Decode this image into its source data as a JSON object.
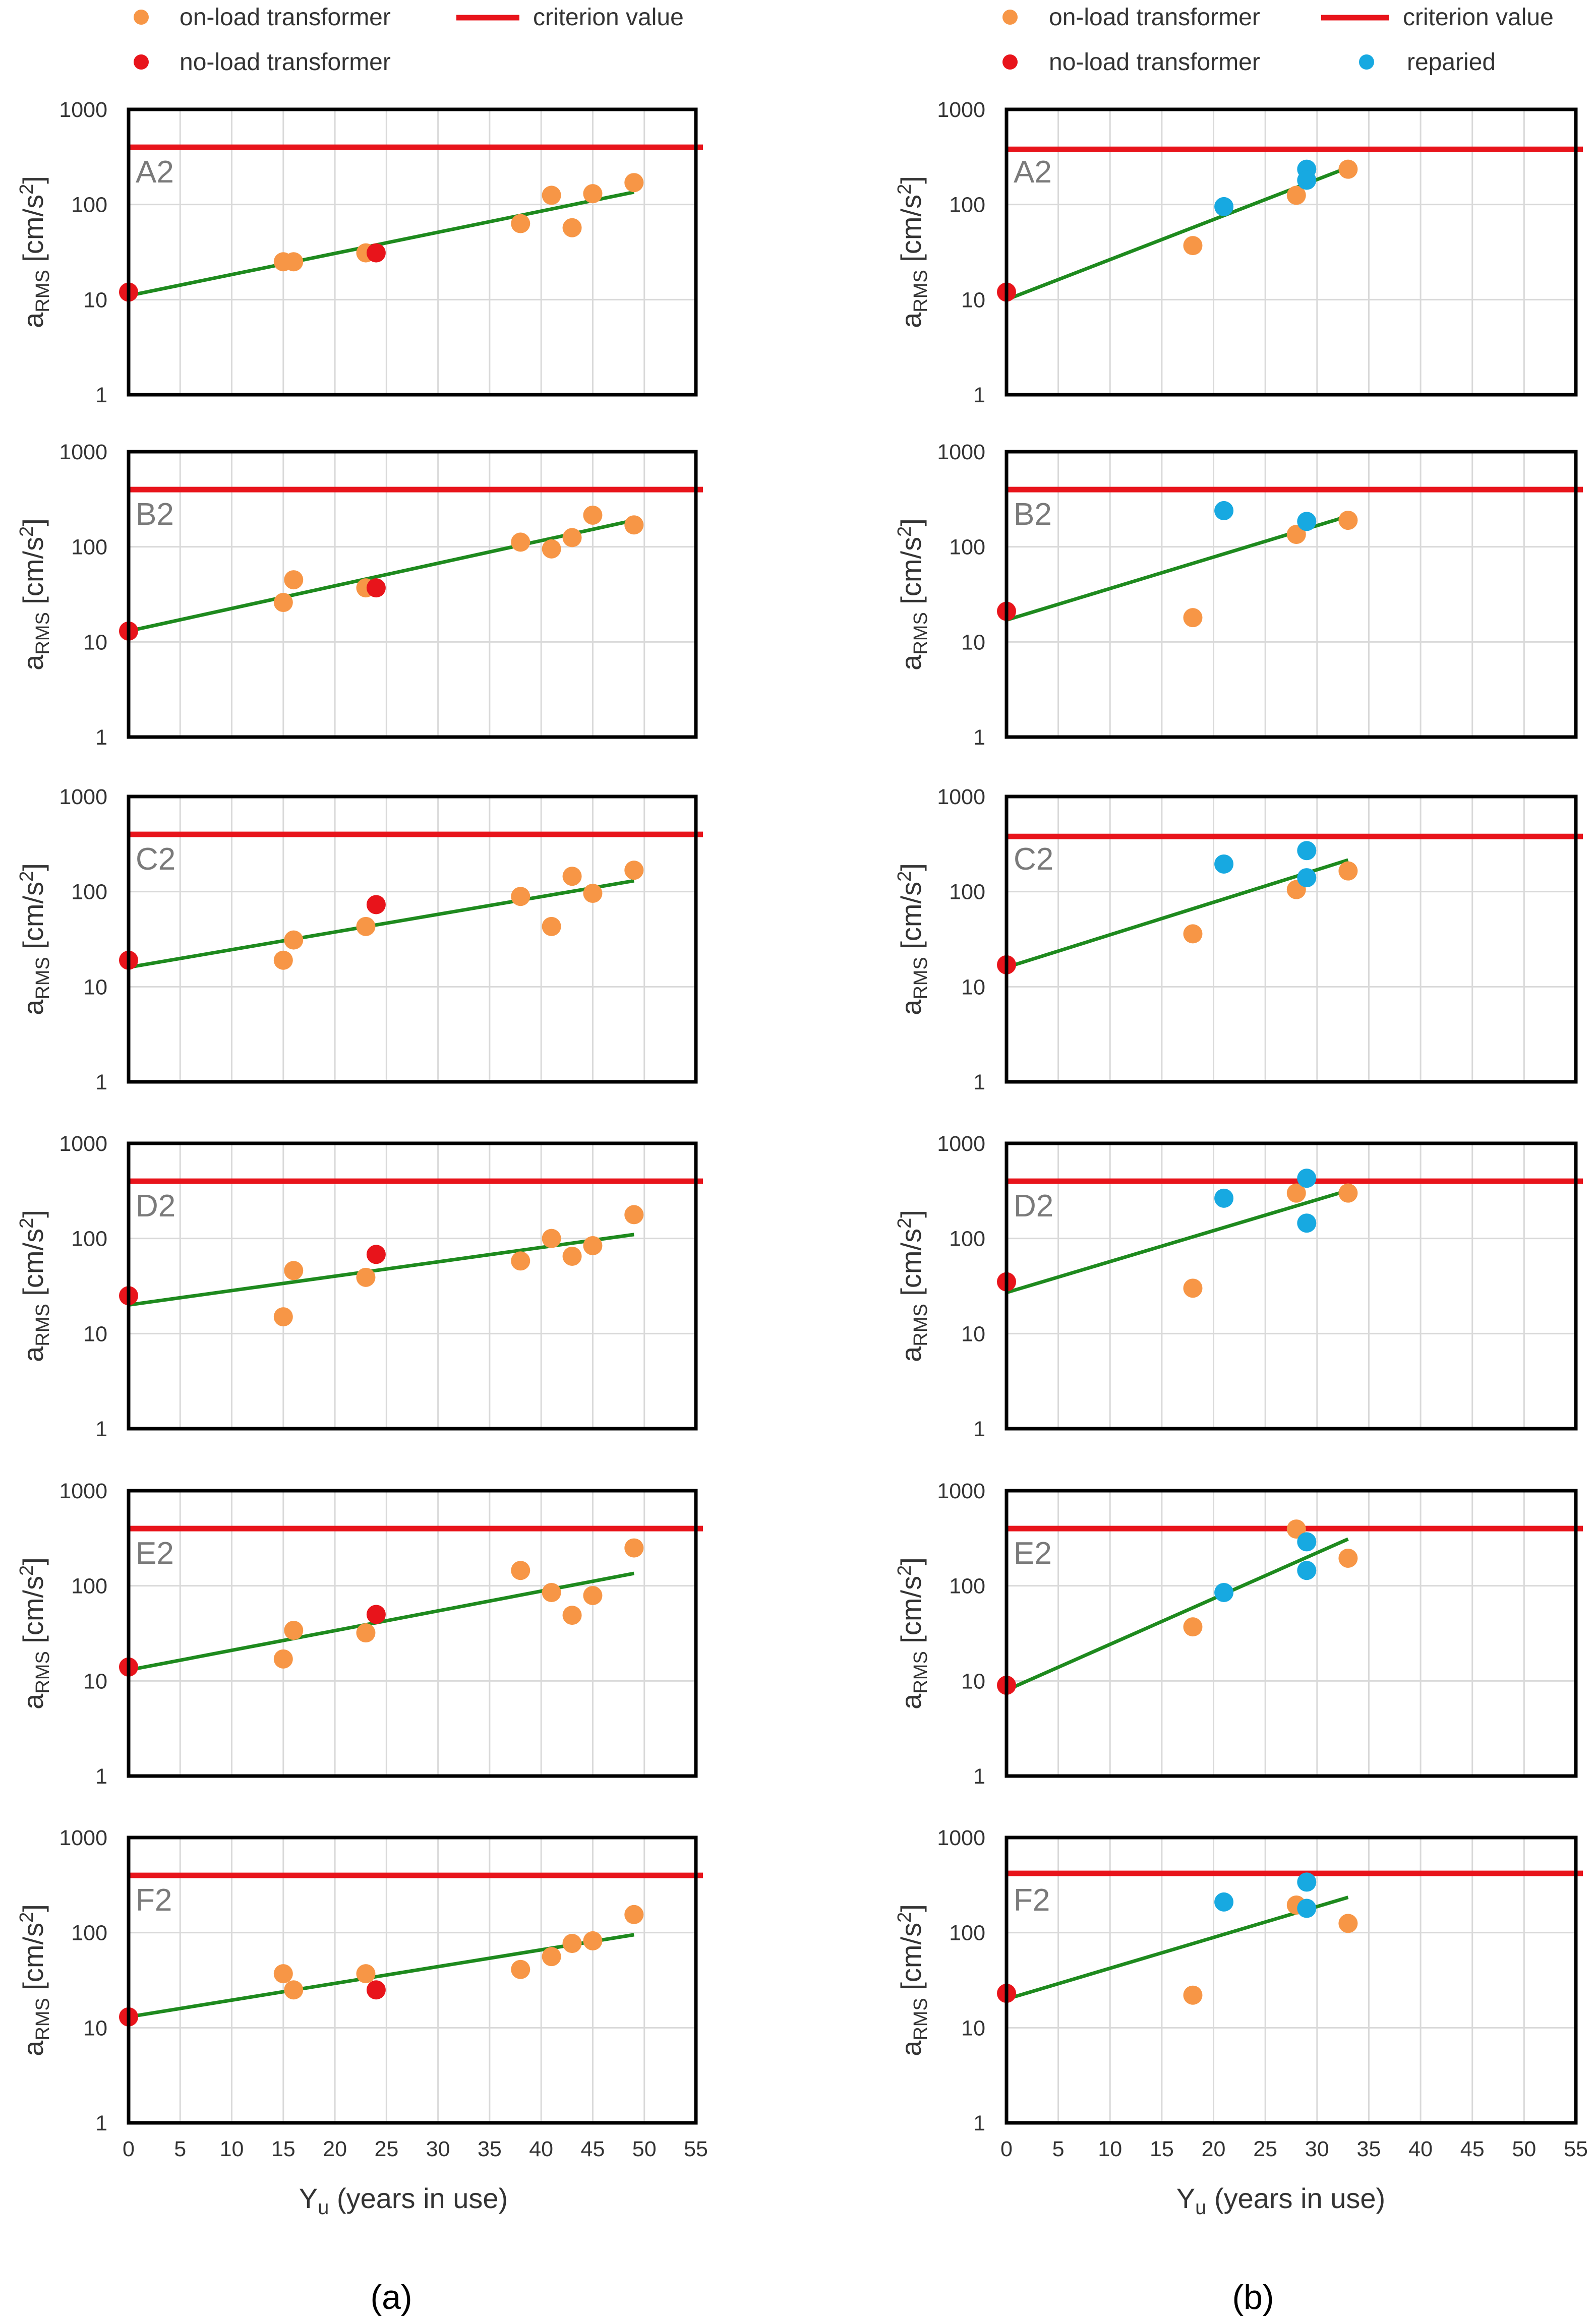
{
  "legend": {
    "left": {
      "on_load": "on-load transformer",
      "criterion": "criterion value",
      "no_load": "no-load transformer"
    },
    "right": {
      "on_load": "on-load transformer",
      "criterion": "criterion value",
      "no_load": "no-load transformer",
      "repaired": "reparied"
    }
  },
  "captions": {
    "a": "(a)",
    "b": "(b)"
  },
  "x_axis": {
    "label": "Y",
    "label_sub": "u",
    "label_suffix": " (years in use)",
    "range": [
      0,
      55
    ],
    "ticks": [
      "0",
      "5",
      "10",
      "15",
      "20",
      "25",
      "30",
      "35",
      "40",
      "45",
      "50",
      "55"
    ]
  },
  "y_axis": {
    "label_main": "a",
    "label_sub": "RMS",
    "label_unit": " [cm/s",
    "label_sup": "2",
    "label_close": "]",
    "scale": "log",
    "range": [
      1,
      1000
    ],
    "ticks": [
      "1",
      "10",
      "100",
      "1000"
    ]
  },
  "colors": {
    "on_load": "#F79646",
    "no_load": "#E8141B",
    "repaired": "#17A9E1",
    "criterion": "#E8141B",
    "trend": "#1E8A1E",
    "frame": "#000000",
    "grid": "#D9D9D9"
  },
  "chart_data": [
    {
      "column": "a",
      "panel": "A2",
      "type": "scatter",
      "criterion": 400,
      "trend": {
        "x": [
          0,
          49
        ],
        "y": [
          11,
          135
        ]
      },
      "on_load": [
        [
          15,
          25
        ],
        [
          16,
          25
        ],
        [
          23,
          31
        ],
        [
          38,
          63
        ],
        [
          41,
          125
        ],
        [
          43,
          57
        ],
        [
          45,
          130
        ],
        [
          49,
          170
        ]
      ],
      "no_load": [
        [
          0,
          12
        ],
        [
          24,
          31
        ]
      ],
      "repaired": []
    },
    {
      "column": "a",
      "panel": "B2",
      "type": "scatter",
      "criterion": 400,
      "trend": {
        "x": [
          0,
          49
        ],
        "y": [
          13,
          190
        ]
      },
      "on_load": [
        [
          15,
          26
        ],
        [
          16,
          45
        ],
        [
          23,
          37
        ],
        [
          38,
          112
        ],
        [
          41,
          95
        ],
        [
          43,
          125
        ],
        [
          45,
          215
        ],
        [
          49,
          170
        ]
      ],
      "no_load": [
        [
          0,
          13
        ],
        [
          24,
          37
        ]
      ],
      "repaired": []
    },
    {
      "column": "a",
      "panel": "C2",
      "type": "scatter",
      "criterion": 400,
      "trend": {
        "x": [
          0,
          49
        ],
        "y": [
          16,
          130
        ]
      },
      "on_load": [
        [
          15,
          19
        ],
        [
          16,
          31
        ],
        [
          23,
          43
        ],
        [
          38,
          89
        ],
        [
          41,
          43
        ],
        [
          43,
          145
        ],
        [
          45,
          96
        ],
        [
          49,
          168
        ]
      ],
      "no_load": [
        [
          0,
          19
        ],
        [
          24,
          73
        ]
      ],
      "repaired": []
    },
    {
      "column": "a",
      "panel": "D2",
      "type": "scatter",
      "criterion": 400,
      "trend": {
        "x": [
          0,
          49
        ],
        "y": [
          20,
          110
        ]
      },
      "on_load": [
        [
          15,
          15
        ],
        [
          16,
          46
        ],
        [
          23,
          39
        ],
        [
          38,
          58
        ],
        [
          41,
          100
        ],
        [
          43,
          65
        ],
        [
          45,
          84
        ],
        [
          49,
          178
        ]
      ],
      "no_load": [
        [
          0,
          25
        ],
        [
          24,
          68
        ]
      ],
      "repaired": []
    },
    {
      "column": "a",
      "panel": "E2",
      "type": "scatter",
      "criterion": 400,
      "trend": {
        "x": [
          0,
          49
        ],
        "y": [
          13,
          135
        ]
      },
      "on_load": [
        [
          15,
          17
        ],
        [
          16,
          34
        ],
        [
          23,
          32
        ],
        [
          38,
          145
        ],
        [
          41,
          85
        ],
        [
          43,
          49
        ],
        [
          45,
          79
        ],
        [
          49,
          250
        ]
      ],
      "no_load": [
        [
          0,
          14
        ],
        [
          24,
          50
        ]
      ],
      "repaired": []
    },
    {
      "column": "a",
      "panel": "F2",
      "type": "scatter",
      "criterion": 400,
      "trend": {
        "x": [
          0,
          49
        ],
        "y": [
          13,
          95
        ]
      },
      "on_load": [
        [
          15,
          37
        ],
        [
          16,
          25
        ],
        [
          23,
          37
        ],
        [
          38,
          41
        ],
        [
          41,
          56
        ],
        [
          43,
          77
        ],
        [
          45,
          82
        ],
        [
          49,
          155
        ]
      ],
      "no_load": [
        [
          0,
          13
        ],
        [
          24,
          25
        ]
      ],
      "repaired": []
    },
    {
      "column": "b",
      "panel": "A2",
      "type": "scatter",
      "criterion": 380,
      "trend": {
        "x": [
          0,
          33
        ],
        "y": [
          10,
          245
        ]
      },
      "on_load": [
        [
          18,
          37
        ],
        [
          28,
          125
        ],
        [
          33,
          235
        ]
      ],
      "no_load": [
        [
          0,
          12
        ]
      ],
      "repaired": [
        [
          21,
          95
        ],
        [
          29,
          235
        ],
        [
          29,
          180
        ]
      ]
    },
    {
      "column": "b",
      "panel": "B2",
      "type": "scatter",
      "criterion": 400,
      "trend": {
        "x": [
          0,
          33
        ],
        "y": [
          17,
          210
        ]
      },
      "on_load": [
        [
          18,
          18
        ],
        [
          28,
          135
        ],
        [
          33,
          190
        ]
      ],
      "no_load": [
        [
          0,
          21
        ]
      ],
      "repaired": [
        [
          21,
          240
        ],
        [
          29,
          185
        ]
      ]
    },
    {
      "column": "b",
      "panel": "C2",
      "type": "scatter",
      "criterion": 380,
      "trend": {
        "x": [
          0,
          33
        ],
        "y": [
          16,
          215
        ]
      },
      "on_load": [
        [
          18,
          36
        ],
        [
          28,
          105
        ],
        [
          33,
          165
        ]
      ],
      "no_load": [
        [
          0,
          17
        ]
      ],
      "repaired": [
        [
          21,
          195
        ],
        [
          29,
          270
        ],
        [
          29,
          140
        ]
      ]
    },
    {
      "column": "b",
      "panel": "D2",
      "type": "scatter",
      "criterion": 400,
      "trend": {
        "x": [
          0,
          33
        ],
        "y": [
          27,
          320
        ]
      },
      "on_load": [
        [
          18,
          30
        ],
        [
          28,
          300
        ],
        [
          33,
          300
        ]
      ],
      "no_load": [
        [
          0,
          35
        ]
      ],
      "repaired": [
        [
          21,
          265
        ],
        [
          29,
          430
        ],
        [
          29,
          145
        ]
      ]
    },
    {
      "column": "b",
      "panel": "E2",
      "type": "scatter",
      "criterion": 400,
      "trend": {
        "x": [
          0,
          33
        ],
        "y": [
          8,
          310
        ]
      },
      "on_load": [
        [
          18,
          37
        ],
        [
          28,
          395
        ],
        [
          33,
          195
        ]
      ],
      "no_load": [
        [
          0,
          9
        ]
      ],
      "repaired": [
        [
          21,
          85
        ],
        [
          29,
          290
        ],
        [
          29,
          145
        ]
      ]
    },
    {
      "column": "b",
      "panel": "F2",
      "type": "scatter",
      "criterion": 420,
      "trend": {
        "x": [
          0,
          33
        ],
        "y": [
          20,
          235
        ]
      },
      "on_load": [
        [
          18,
          22
        ],
        [
          28,
          195
        ],
        [
          33,
          125
        ]
      ],
      "no_load": [
        [
          0,
          23
        ]
      ],
      "repaired": [
        [
          21,
          210
        ],
        [
          29,
          340
        ],
        [
          29,
          180
        ]
      ]
    }
  ]
}
